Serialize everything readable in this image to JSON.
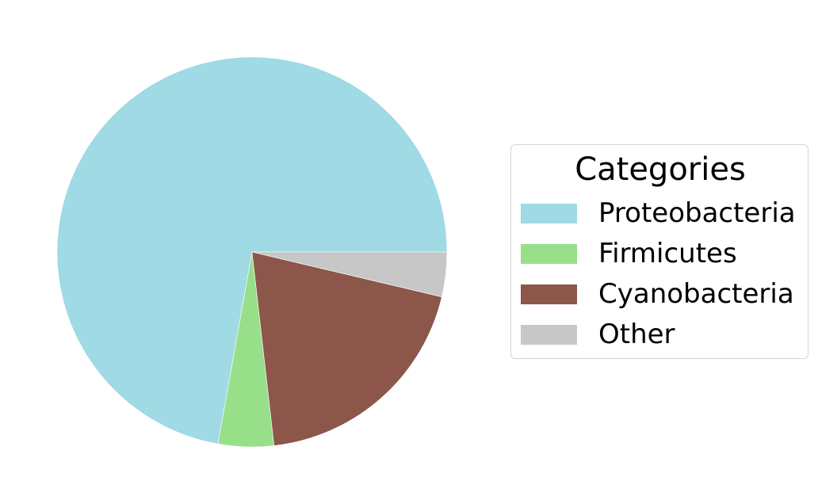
{
  "chart_data": {
    "type": "pie",
    "title": "",
    "legend": {
      "title": "Categories",
      "placement": "right"
    },
    "start_angle_deg": 0,
    "direction": "counterclockwise",
    "slices": [
      {
        "label": "Proteobacteria",
        "value": 72.2,
        "color": "#9fdae5"
      },
      {
        "label": "Firmicutes",
        "value": 4.6,
        "color": "#98df8a"
      },
      {
        "label": "Cyanobacteria",
        "value": 19.5,
        "color": "#8c564b"
      },
      {
        "label": "Other",
        "value": 3.7,
        "color": "#c7c7c7"
      }
    ]
  }
}
